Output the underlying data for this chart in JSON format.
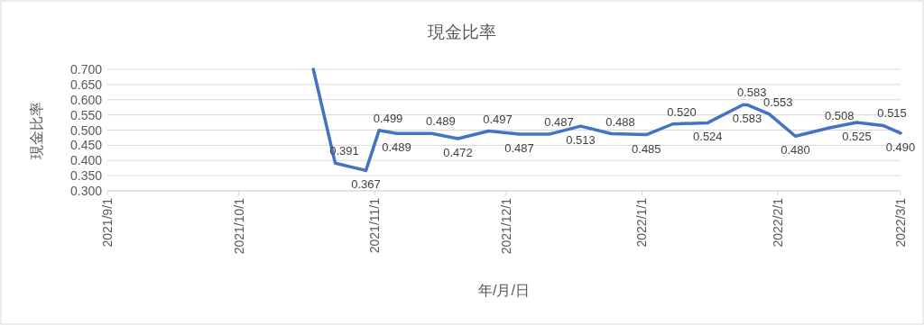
{
  "chart_data": {
    "type": "line",
    "title": "現金比率",
    "xlabel": "年/月/日",
    "ylabel": "現金比率",
    "x": [
      "2021-10-18",
      "2021-10-23",
      "2021-10-30",
      "2021-11-02",
      "2021-11-06",
      "2021-11-14",
      "2021-11-20",
      "2021-11-27",
      "2021-12-04",
      "2021-12-11",
      "2021-12-18",
      "2021-12-25",
      "2022-01-02",
      "2022-01-08",
      "2022-01-16",
      "2022-01-24",
      "2022-01-25",
      "2022-01-30",
      "2022-02-05",
      "2022-02-13",
      "2022-02-19",
      "2022-02-25",
      "2022-03-01"
    ],
    "series": [
      {
        "color": "#4472c4",
        "values": [
          0.7,
          0.391,
          0.367,
          0.499,
          0.489,
          0.489,
          0.472,
          0.497,
          0.487,
          0.487,
          0.513,
          0.488,
          0.485,
          0.52,
          0.524,
          0.583,
          0.583,
          0.553,
          0.48,
          0.508,
          0.525,
          0.515,
          0.49
        ],
        "value_labels": [
          null,
          "0.391",
          "0.367",
          "0.499",
          "0.489",
          "0.489",
          "0.472",
          "0.497",
          "0.487",
          "0.487",
          "0.513",
          "0.488",
          "0.485",
          "0.520",
          "0.524",
          "0.583",
          "0.583",
          "0.553",
          "0.480",
          "0.508",
          "0.525",
          "0.515",
          "0.490"
        ]
      }
    ],
    "xlim": [
      "2021-09-01",
      "2022-03-01"
    ],
    "xticks": [
      {
        "value": "2021-09-01",
        "label": "2021/9/1"
      },
      {
        "value": "2021-10-01",
        "label": "2021/10/1"
      },
      {
        "value": "2021-11-01",
        "label": "2021/11/1"
      },
      {
        "value": "2021-12-01",
        "label": "2021/12/1"
      },
      {
        "value": "2022-01-01",
        "label": "2022/1/1"
      },
      {
        "value": "2022-02-01",
        "label": "2022/2/1"
      },
      {
        "value": "2022-03-01",
        "label": "2022/3/1"
      }
    ],
    "ylim": [
      0.3,
      0.7
    ],
    "yticks": [
      {
        "value": 0.3,
        "label": "0.300"
      },
      {
        "value": 0.35,
        "label": "0.350"
      },
      {
        "value": 0.4,
        "label": "0.400"
      },
      {
        "value": 0.45,
        "label": "0.450"
      },
      {
        "value": 0.5,
        "label": "0.500"
      },
      {
        "value": 0.55,
        "label": "0.550"
      },
      {
        "value": 0.6,
        "label": "0.600"
      },
      {
        "value": 0.65,
        "label": "0.650"
      },
      {
        "value": 0.7,
        "label": "0.700"
      }
    ],
    "grid": "y",
    "marker": "none",
    "line_style": "solid"
  }
}
